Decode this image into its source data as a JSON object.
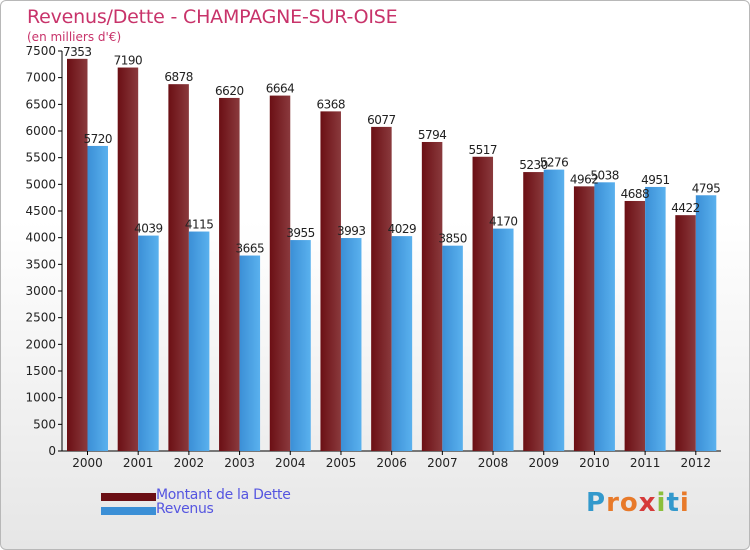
{
  "colors": {
    "dette": "#6b0f14",
    "dette_light": "#8a3a3d",
    "revenus": "#3b8fd6",
    "revenus_light": "#5ab1ee",
    "title": "#c8336a",
    "legend_text": "#5555e0"
  },
  "chart_data": {
    "type": "bar",
    "title": "Revenus/Dette - CHAMPAGNE-SUR-OISE",
    "subtitle": "(en milliers d'€)",
    "categories": [
      "2000",
      "2001",
      "2002",
      "2003",
      "2004",
      "2005",
      "2006",
      "2007",
      "2008",
      "2009",
      "2010",
      "2011",
      "2012"
    ],
    "series": [
      {
        "name": "Montant de la Dette",
        "values": [
          7353,
          7190,
          6878,
          6620,
          6664,
          6368,
          6077,
          5794,
          5517,
          5230,
          4962,
          4688,
          4422
        ]
      },
      {
        "name": "Revenus",
        "values": [
          5720,
          4039,
          4115,
          3665,
          3955,
          3993,
          4029,
          3850,
          4170,
          5276,
          5038,
          4951,
          4795
        ]
      }
    ],
    "ylim": [
      0,
      7500
    ],
    "yticks": [
      0,
      500,
      1000,
      1500,
      2000,
      2500,
      3000,
      3500,
      4000,
      4500,
      5000,
      5500,
      6000,
      6500,
      7000,
      7500
    ],
    "xlabel": "",
    "ylabel": "",
    "grid": false,
    "legend": "bottom-left"
  },
  "logo": {
    "letters": [
      "P",
      "r",
      "o",
      "x",
      "i",
      "t",
      "i"
    ],
    "colors": [
      "#3399cc",
      "#e87a2a",
      "#e87a2a",
      "#d63a3a",
      "#8bbf3b",
      "#3399cc",
      "#e87a2a"
    ]
  }
}
